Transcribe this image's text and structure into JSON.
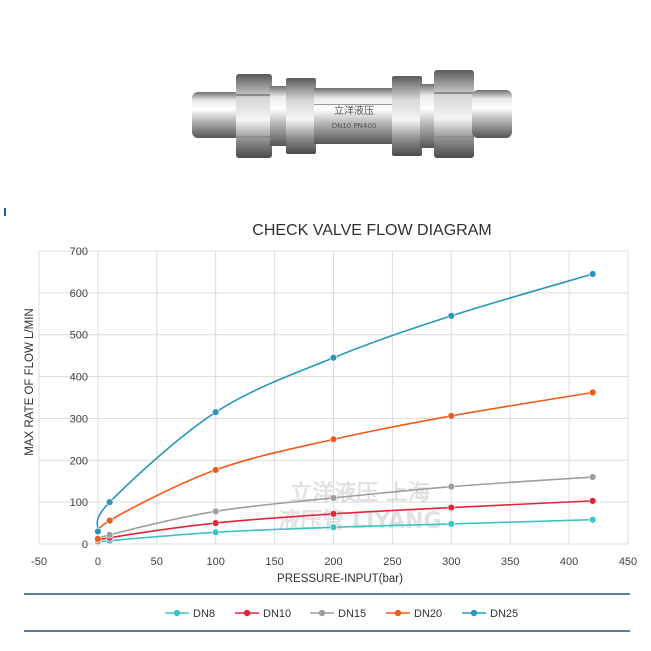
{
  "product": {
    "body_marking": "立洋液压",
    "model_marking": "DN10 PN400",
    "watermark_line1": "立洋液压 上海",
    "watermark_line2": "液压管 LIYANG"
  },
  "chart_data": {
    "type": "line",
    "title": "CHECK VALVE FLOW DIAGRAM",
    "xlabel": "PRESSURE-INPUT(bar)",
    "ylabel": "MAX RATE OF FLOW  L/MIN",
    "xlim": [
      -50,
      450
    ],
    "ylim": [
      0,
      700
    ],
    "xticks": [
      "-50",
      "0",
      "50",
      "100",
      "150",
      "200",
      "250",
      "300",
      "350",
      "400",
      "450"
    ],
    "yticks": [
      "0",
      "100",
      "200",
      "300",
      "400",
      "500",
      "600",
      "700"
    ],
    "grid": "vertical and horizontal",
    "legend_position": "bottom",
    "x": [
      0,
      10,
      100,
      200,
      300,
      420
    ],
    "series": [
      {
        "name": "DN8",
        "color": "#3cc4c4",
        "values": [
          3,
          8,
          28,
          40,
          48,
          58
        ]
      },
      {
        "name": "DN10",
        "color": "#e0243c",
        "values": [
          4,
          15,
          50,
          72,
          87,
          103
        ]
      },
      {
        "name": "DN15",
        "color": "#9e9e9e",
        "values": [
          6,
          22,
          78,
          110,
          137,
          160
        ]
      },
      {
        "name": "DN20",
        "color": "#f05a18",
        "values": [
          12,
          56,
          177,
          250,
          306,
          362
        ]
      },
      {
        "name": "DN25",
        "color": "#2996bb",
        "values": [
          30,
          100,
          315,
          445,
          545,
          645
        ]
      }
    ]
  }
}
